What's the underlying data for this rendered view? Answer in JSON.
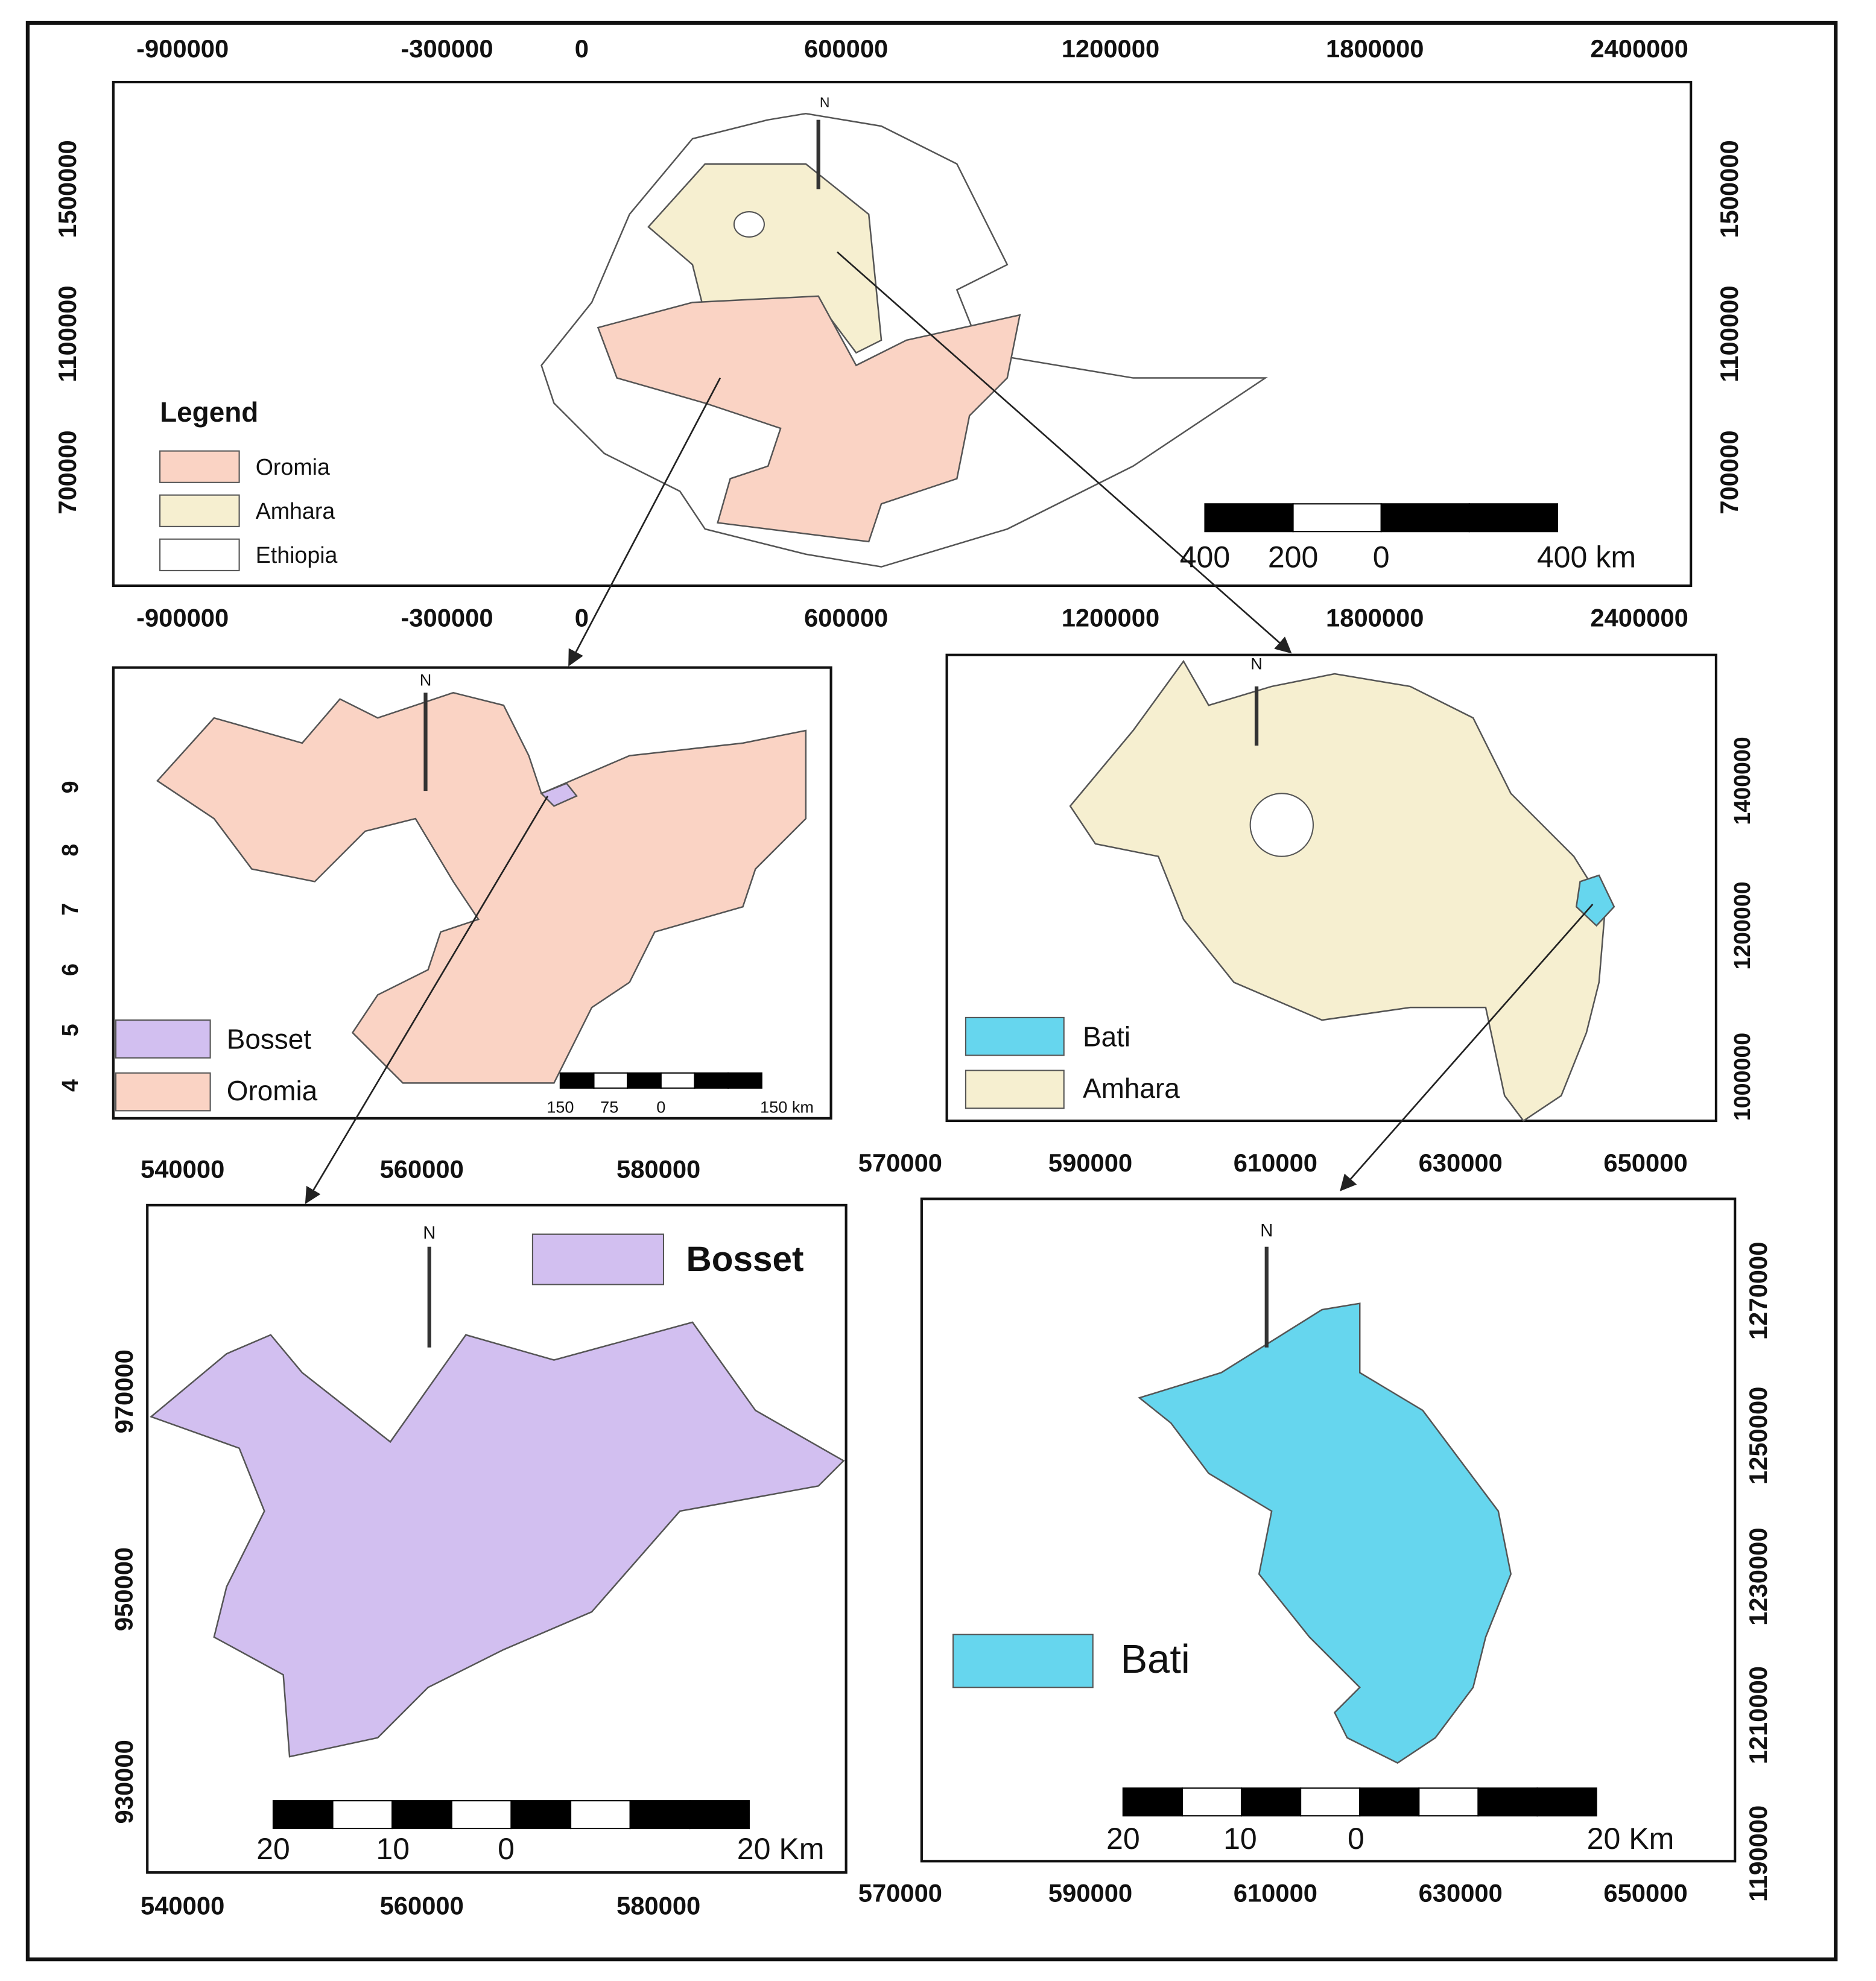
{
  "panels": [
    {
      "top_axis": [
        "-900000",
        "-300000",
        "0",
        "600000",
        "1200000",
        "1800000",
        "2400000"
      ],
      "bottom_axis": [
        "-900000",
        "-300000",
        "0",
        "600000",
        "1200000",
        "1800000",
        "2400000"
      ],
      "left_axis": [
        "1500000",
        "1100000",
        "700000"
      ],
      "right_axis": [
        "1500000",
        "1100000",
        "700000"
      ],
      "north": "N",
      "legend_title": "Legend",
      "legend": [
        "Oromia",
        "Amhara",
        "Ethiopia"
      ],
      "scale_bar": [
        "400",
        "200",
        "0",
        "400 km"
      ]
    },
    {
      "left_axis": [
        "9",
        "8",
        "7",
        "6",
        "5",
        "4"
      ],
      "north": "N",
      "legend": [
        "Bosset",
        "Oromia"
      ],
      "scale_bar": [
        "150",
        "75",
        "0",
        "150 km"
      ]
    },
    {
      "right_axis": [
        "1400000",
        "1200000",
        "1000000"
      ],
      "north": "N",
      "legend": [
        "Bati",
        "Amhara"
      ]
    },
    {
      "top_axis": [
        "540000",
        "560000",
        "580000"
      ],
      "bottom_axis": [
        "540000",
        "560000",
        "580000"
      ],
      "left_axis": [
        "970000",
        "950000",
        "930000"
      ],
      "north": "N",
      "legend": [
        "Bosset"
      ],
      "scale_bar": [
        "20",
        "10",
        "0",
        "20 Km"
      ]
    },
    {
      "top_axis": [
        "570000",
        "590000",
        "610000",
        "630000",
        "650000"
      ],
      "bottom_axis": [
        "570000",
        "590000",
        "610000",
        "630000",
        "650000"
      ],
      "right_axis": [
        "1270000",
        "1250000",
        "1230000",
        "1210000",
        "1190000"
      ],
      "north": "N",
      "legend": [
        "Bati"
      ],
      "scale_bar": [
        "20",
        "10",
        "0",
        "20 Km"
      ]
    }
  ]
}
